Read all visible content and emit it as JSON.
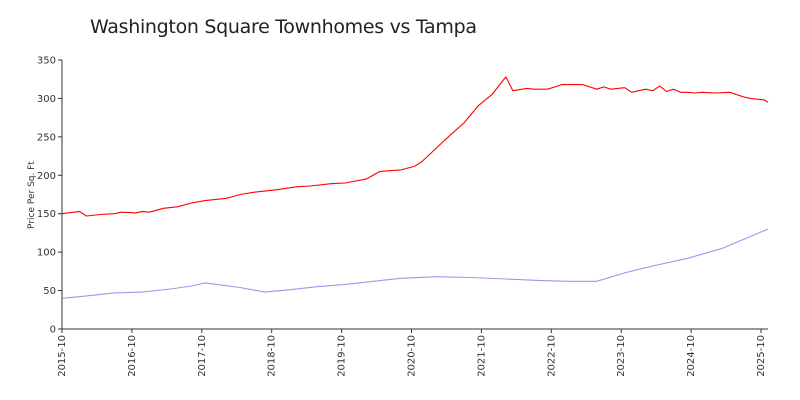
{
  "chart_data": {
    "type": "line",
    "title": "Washington Square Townhomes vs Tampa",
    "xlabel": "",
    "ylabel": "Price Per Sq. Ft",
    "ylim": [
      0,
      350
    ],
    "yticks": [
      0,
      50,
      100,
      150,
      200,
      250,
      300,
      350
    ],
    "xlim": [
      2015.75,
      2025.85
    ],
    "xticks": [
      {
        "label": "2015-10",
        "x": 2015.75
      },
      {
        "label": "2016-10",
        "x": 2016.75
      },
      {
        "label": "2017-10",
        "x": 2017.75
      },
      {
        "label": "2018-10",
        "x": 2018.75
      },
      {
        "label": "2019-10",
        "x": 2019.75
      },
      {
        "label": "2020-10",
        "x": 2020.75
      },
      {
        "label": "2021-10",
        "x": 2021.75
      },
      {
        "label": "2022-10",
        "x": 2022.75
      },
      {
        "label": "2023-10",
        "x": 2023.75
      },
      {
        "label": "2024-10",
        "x": 2024.75
      },
      {
        "label": "2025-10",
        "x": 2025.75
      }
    ],
    "grid": false,
    "series": [
      {
        "name": "Tampa",
        "color": "#ff0000",
        "x": [
          2015.75,
          2016.0,
          2016.1,
          2016.3,
          2016.5,
          2016.6,
          2016.8,
          2016.9,
          2017.0,
          2017.2,
          2017.4,
          2017.6,
          2017.8,
          2018.1,
          2018.3,
          2018.5,
          2018.8,
          2019.1,
          2019.3,
          2019.6,
          2019.8,
          2020.1,
          2020.3,
          2020.6,
          2020.8,
          2020.9,
          2021.1,
          2021.3,
          2021.5,
          2021.7,
          2021.9,
          2022.1,
          2022.2,
          2022.4,
          2022.5,
          2022.55,
          2022.7,
          2022.9,
          2023.1,
          2023.2,
          2023.4,
          2023.5,
          2023.6,
          2023.8,
          2023.9,
          2024.1,
          2024.2,
          2024.3,
          2024.4,
          2024.5,
          2024.6,
          2024.7,
          2024.8,
          2024.9,
          2025.1,
          2025.3,
          2025.5,
          2025.6,
          2025.8,
          2025.85
        ],
        "values": [
          150,
          153,
          147,
          149,
          150,
          152,
          151,
          153,
          152,
          157,
          159,
          164,
          167,
          170,
          175,
          178,
          181,
          185,
          186,
          189,
          190,
          195,
          205,
          207,
          212,
          218,
          235,
          252,
          268,
          290,
          305,
          328,
          310,
          313,
          312,
          312,
          312,
          318,
          318,
          318,
          312,
          315,
          312,
          314,
          308,
          312,
          310,
          316,
          309,
          312,
          308,
          308,
          307,
          308,
          307,
          308,
          302,
          300,
          298,
          295
        ]
      },
      {
        "name": "Washington Square Townhomes",
        "color": "#9999ee",
        "x": [
          2015.75,
          2016.0,
          2016.5,
          2016.9,
          2017.3,
          2017.6,
          2017.8,
          2018.3,
          2018.65,
          2019.0,
          2019.4,
          2019.8,
          2020.3,
          2020.6,
          2021.1,
          2021.6,
          2022.1,
          2022.6,
          2023.0,
          2023.4,
          2023.8,
          2024.2,
          2024.7,
          2025.2,
          2025.85
        ],
        "values": [
          40,
          42,
          47,
          48,
          52,
          56,
          60,
          54,
          48,
          51,
          55,
          58,
          63,
          66,
          68,
          67,
          65,
          63,
          62,
          62,
          73,
          82,
          92,
          105,
          130
        ]
      }
    ]
  }
}
